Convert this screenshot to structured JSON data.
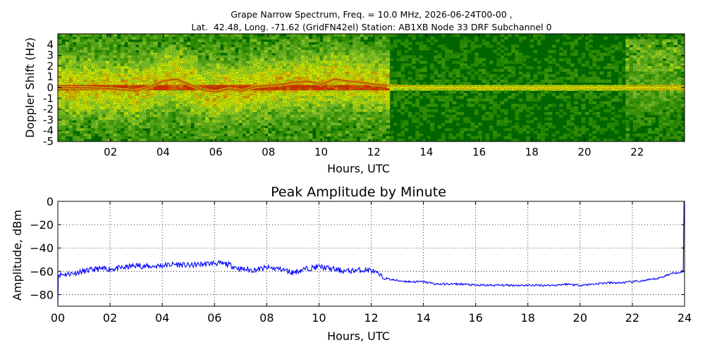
{
  "chart_data": [
    {
      "type": "heatmap",
      "title_line1": "Grape Narrow Spectrum, Freq. = 10.0 MHz, 2026-06-24T00-00 ,",
      "title_line2": "Lat.  42.48, Long. -71.62 (GridFN42el) Station: AB1XB Node 33 DRF Subchannel 0",
      "xlabel": "Hours, UTC",
      "ylabel": "Doppler Shift (Hz)",
      "xlim": [
        0,
        23.8
      ],
      "ylim": [
        -5,
        5
      ],
      "xticks": [
        {
          "value": 2,
          "label": "02"
        },
        {
          "value": 4,
          "label": "04"
        },
        {
          "value": 6,
          "label": "06"
        },
        {
          "value": 8,
          "label": "08"
        },
        {
          "value": 10,
          "label": "10"
        },
        {
          "value": 12,
          "label": "12"
        },
        {
          "value": 14,
          "label": "14"
        },
        {
          "value": 16,
          "label": "16"
        },
        {
          "value": 18,
          "label": "18"
        },
        {
          "value": 20,
          "label": "20"
        },
        {
          "value": 22,
          "label": "22"
        }
      ],
      "yticks": [
        {
          "value": 4,
          "label": "4"
        },
        {
          "value": 3,
          "label": "3"
        },
        {
          "value": 2,
          "label": "2"
        },
        {
          "value": 1,
          "label": "1"
        },
        {
          "value": 0,
          "label": "0"
        },
        {
          "value": -1,
          "label": "-1"
        },
        {
          "value": -2,
          "label": "-2"
        },
        {
          "value": -3,
          "label": "-3"
        },
        {
          "value": -4,
          "label": "-4"
        },
        {
          "value": -5,
          "label": "-5"
        }
      ],
      "colormap": [
        "#006400",
        "#2e8b00",
        "#9acd32",
        "#ffff00",
        "#ff8c00",
        "#ff2000"
      ],
      "carrier_doppler_hz": 0.0,
      "carrier_trace": {
        "hours": [
          0,
          1,
          2,
          3,
          3.5,
          4,
          4.5,
          5,
          5.5,
          6,
          6.5,
          7,
          7.5,
          8,
          8.5,
          9,
          9.5,
          10,
          10.5,
          11,
          11.5,
          12,
          12.5,
          13,
          14,
          16,
          18,
          20,
          22,
          23.8
        ],
        "doppler_hz": [
          0.0,
          0.0,
          -0.1,
          -0.3,
          0.1,
          0.6,
          0.8,
          0.3,
          -0.2,
          -0.4,
          -0.1,
          -0.3,
          0.1,
          0.2,
          0.3,
          0.5,
          0.6,
          0.3,
          0.8,
          0.6,
          0.5,
          0.3,
          0.2,
          0.1,
          0.0,
          0.0,
          0.0,
          0.0,
          0.0,
          0.0
        ]
      }
    },
    {
      "type": "line",
      "title": "Peak Amplitude by Minute",
      "xlabel": "Hours, UTC",
      "ylabel": "Amplitude, dBm",
      "xlim": [
        0,
        24
      ],
      "ylim": [
        -90,
        0
      ],
      "grid": true,
      "line_color": "#0000ff",
      "xticks": [
        {
          "value": 0,
          "label": "00"
        },
        {
          "value": 2,
          "label": "02"
        },
        {
          "value": 4,
          "label": "04"
        },
        {
          "value": 6,
          "label": "06"
        },
        {
          "value": 8,
          "label": "08"
        },
        {
          "value": 10,
          "label": "10"
        },
        {
          "value": 12,
          "label": "12"
        },
        {
          "value": 14,
          "label": "14"
        },
        {
          "value": 16,
          "label": "16"
        },
        {
          "value": 18,
          "label": "18"
        },
        {
          "value": 20,
          "label": "20"
        },
        {
          "value": 22,
          "label": "22"
        },
        {
          "value": 24,
          "label": "24"
        }
      ],
      "yticks": [
        {
          "value": 0,
          "label": "0"
        },
        {
          "value": -20,
          "label": "−20"
        },
        {
          "value": -40,
          "label": "−40"
        },
        {
          "value": -60,
          "label": "−60"
        },
        {
          "value": -80,
          "label": "−80"
        }
      ],
      "series": [
        {
          "x": [
            0,
            0.5,
            1,
            1.5,
            2,
            2.5,
            3,
            3.5,
            4,
            4.5,
            5,
            5.5,
            6,
            6.5,
            7,
            7.5,
            8,
            8.5,
            9,
            9.5,
            10,
            10.5,
            11,
            11.5,
            12,
            12.5,
            13,
            13.5,
            14,
            14.5,
            15,
            15.5,
            16,
            16.5,
            17,
            17.5,
            18,
            18.5,
            19,
            19.5,
            20,
            20.5,
            21,
            21.5,
            22,
            22.5,
            23,
            23.5,
            23.95
          ],
          "y": [
            -63,
            -62,
            -60,
            -58,
            -58,
            -57,
            -55,
            -56,
            -55,
            -54,
            -55,
            -54,
            -53,
            -54,
            -58,
            -59,
            -57,
            -58,
            -61,
            -58,
            -56,
            -58,
            -60,
            -59,
            -59,
            -66,
            -68,
            -69,
            -69,
            -71,
            -71,
            -71,
            -72,
            -72,
            -72,
            -72,
            -72,
            -72,
            -72,
            -71,
            -72,
            -71,
            -70,
            -70,
            -69,
            -68,
            -66,
            -62,
            -60
          ]
        }
      ]
    }
  ]
}
